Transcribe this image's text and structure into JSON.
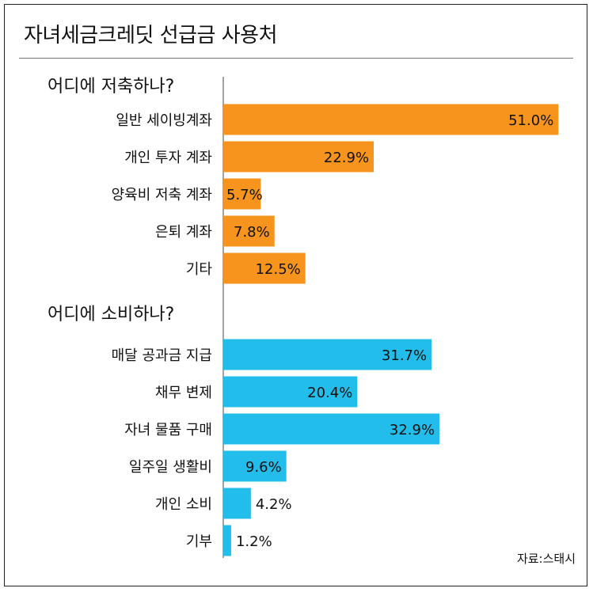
{
  "title": "자녀세금크레딧 선급금 사용처",
  "source": "자료:스태시",
  "chart_data": [
    {
      "type": "bar",
      "orientation": "horizontal",
      "title": "어디에 저축하나?",
      "color": "#F7941D",
      "categories": [
        "일반 세이빙계좌",
        "개인 투자 계좌",
        "양육비 저축 계좌",
        "은퇴 계좌",
        "기타"
      ],
      "values": [
        51.0,
        22.9,
        5.7,
        7.8,
        12.5
      ],
      "labels": [
        "51.0%",
        "22.9%",
        "5.7%",
        "7.8%",
        "12.5%"
      ]
    },
    {
      "type": "bar",
      "orientation": "horizontal",
      "title": "어디에 소비하나?",
      "color": "#22BDEB",
      "categories": [
        "매달 공과금 지급",
        "채무 변제",
        "자녀 물품 구매",
        "일주일 생활비",
        "개인 소비",
        "기부"
      ],
      "values": [
        31.7,
        20.4,
        32.9,
        9.6,
        4.2,
        1.2
      ],
      "labels": [
        "31.7%",
        "20.4%",
        "32.9%",
        "9.6%",
        "4.2%",
        "1.2%"
      ]
    }
  ]
}
